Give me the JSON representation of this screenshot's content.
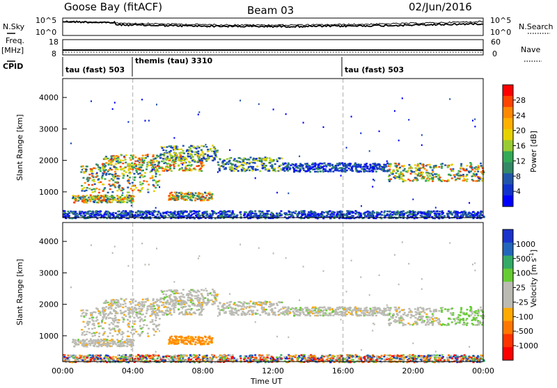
{
  "header": {
    "title": "Goose Bay (fitACF)",
    "beam": "Beam 03",
    "date": "02/Jun/2016"
  },
  "left_labels": {
    "nsky": "N.Sky",
    "freq": "Freq.",
    "freq_unit": "[MHz]",
    "cpid": "CPID"
  },
  "right_labels": {
    "nsearch": "N.Search",
    "nave": "Nave"
  },
  "cpid_segments": [
    {
      "label": "tau (fast) 503",
      "start": "00:00"
    },
    {
      "label": "themis (tau) 3310",
      "start": "04:00"
    },
    {
      "label": "tau (fast) 503",
      "start": "16:00"
    }
  ],
  "noise_axis": {
    "left_ticks": [
      "10^5",
      "10^0"
    ],
    "right_ticks": [
      "10^5",
      "10^0"
    ]
  },
  "freq_axis": {
    "left_ticks": [
      "18",
      "8"
    ],
    "right_ticks": [
      "60",
      "0"
    ]
  },
  "chart_data": [
    {
      "type": "heatmap",
      "name": "power",
      "ylabel": "Slant Range [km]",
      "xlabel": "Time UT",
      "x_ticks": [
        "00:00",
        "04:00",
        "08:00",
        "12:00",
        "16:00",
        "20:00",
        "00:00"
      ],
      "xlim_hours": [
        0,
        24
      ],
      "ylim": [
        180,
        4600
      ],
      "y_ticks": [
        1000,
        2000,
        3000,
        4000
      ],
      "colorbar": {
        "label": "Power [dB]",
        "ticks": [
          "28",
          "24",
          "20",
          "16",
          "12",
          "8",
          "4"
        ],
        "colors": [
          "#ff0000",
          "#ff4400",
          "#ff8800",
          "#ffb000",
          "#e6d200",
          "#99cc33",
          "#33aa55",
          "#338866",
          "#2255aa",
          "#1133cc",
          "#0000ff"
        ]
      },
      "bands": [
        {
          "start": 1.0,
          "end": 5.5,
          "center": 1450,
          "width": 450,
          "tone": "hi"
        },
        {
          "start": 2.2,
          "end": 8.0,
          "center": 1950,
          "width": 260,
          "tone": "hi"
        },
        {
          "start": 5.5,
          "end": 8.8,
          "center": 2250,
          "width": 250,
          "tone": "mid"
        },
        {
          "start": 8.8,
          "end": 12.5,
          "center": 1900,
          "width": 220,
          "tone": "mid"
        },
        {
          "start": 12.5,
          "end": 18.5,
          "center": 1800,
          "width": 140,
          "tone": "low"
        },
        {
          "start": 18.5,
          "end": 24.0,
          "center": 1650,
          "width": 300,
          "tone": "hi"
        },
        {
          "start": 0.5,
          "end": 4.0,
          "center": 800,
          "width": 120,
          "tone": "hi"
        },
        {
          "start": 6.0,
          "end": 8.5,
          "center": 880,
          "width": 130,
          "tone": "hi"
        },
        {
          "start": 0.0,
          "end": 24.0,
          "center": 300,
          "width": 120,
          "tone": "low"
        }
      ]
    },
    {
      "type": "heatmap",
      "name": "velocity",
      "ylabel": "Slant Range [km]",
      "xlabel": "Time UT",
      "x_ticks": [
        "00:00",
        "04:00",
        "08:00",
        "12:00",
        "16:00",
        "20:00",
        "00:00"
      ],
      "xlim_hours": [
        0,
        24
      ],
      "ylim": [
        180,
        4600
      ],
      "y_ticks": [
        1000,
        2000,
        3000,
        4000
      ],
      "colorbar": {
        "label": "Velocity [m s^-1]",
        "ticks": [
          "1000",
          "500",
          "100",
          "25",
          "-25",
          "-100",
          "-500",
          "-1000"
        ],
        "colors": [
          "#1a33cc",
          "#2266bb",
          "#33aa66",
          "#66cc33",
          "#bbbbb4",
          "#bbbbb4",
          "#ffaa00",
          "#ff7700",
          "#ff3300",
          "#ff0000"
        ]
      }
    }
  ],
  "footer": {
    "xlabel": "Time UT"
  }
}
